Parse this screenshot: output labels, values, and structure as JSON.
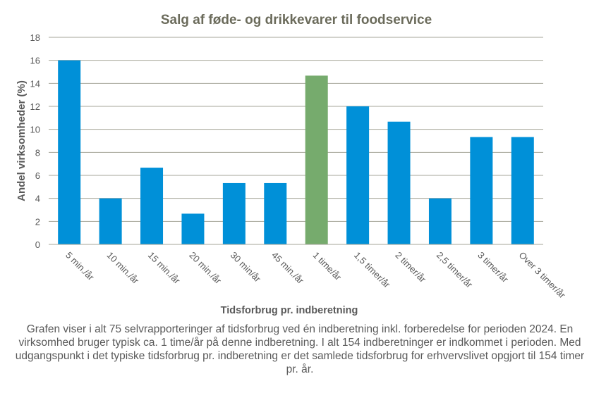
{
  "chart_data": {
    "type": "bar",
    "title": "Salg af føde- og drikkevarer  til foodservice",
    "xlabel": "Tidsforbrug pr. indberetning",
    "ylabel": "Andel virksomheder  (%)",
    "ylim": [
      0,
      18
    ],
    "yticks": [
      0,
      2,
      4,
      6,
      8,
      10,
      12,
      14,
      16,
      18
    ],
    "grid": true,
    "categories": [
      "5 min./år",
      "10 min./år",
      "15 min./år",
      "20 min./år",
      "30 min/år",
      "45 min./år",
      "1 time/år",
      "1,5 timer/år",
      "2 timer/år",
      "2,5 timer/år",
      "3 timer/år",
      "Over 3 timer/år"
    ],
    "values": [
      16.0,
      4.0,
      6.67,
      2.67,
      5.33,
      5.33,
      14.67,
      12.0,
      10.67,
      4.0,
      9.33,
      9.33
    ],
    "highlight_index": 6,
    "colors": {
      "bar": "#0090D8",
      "highlight": "#76AB6D",
      "grid": "#A6A69A",
      "text": "#595959",
      "title": "#6B6B5B"
    }
  },
  "caption": "Grafen viser i alt 75 selvrapporteringer af tidsforbrug ved én indberetning inkl. forberedelse for perioden 2024. En virksomhed bruger typisk ca. 1 time/år på denne indberetning. I alt 154 indberetninger er indkommet i perioden. Med udgangspunkt i det typiske tidsforbrug pr. indberetning er det samlede tidsforbrug for erhvervslivet opgjort til 154 timer pr. år."
}
